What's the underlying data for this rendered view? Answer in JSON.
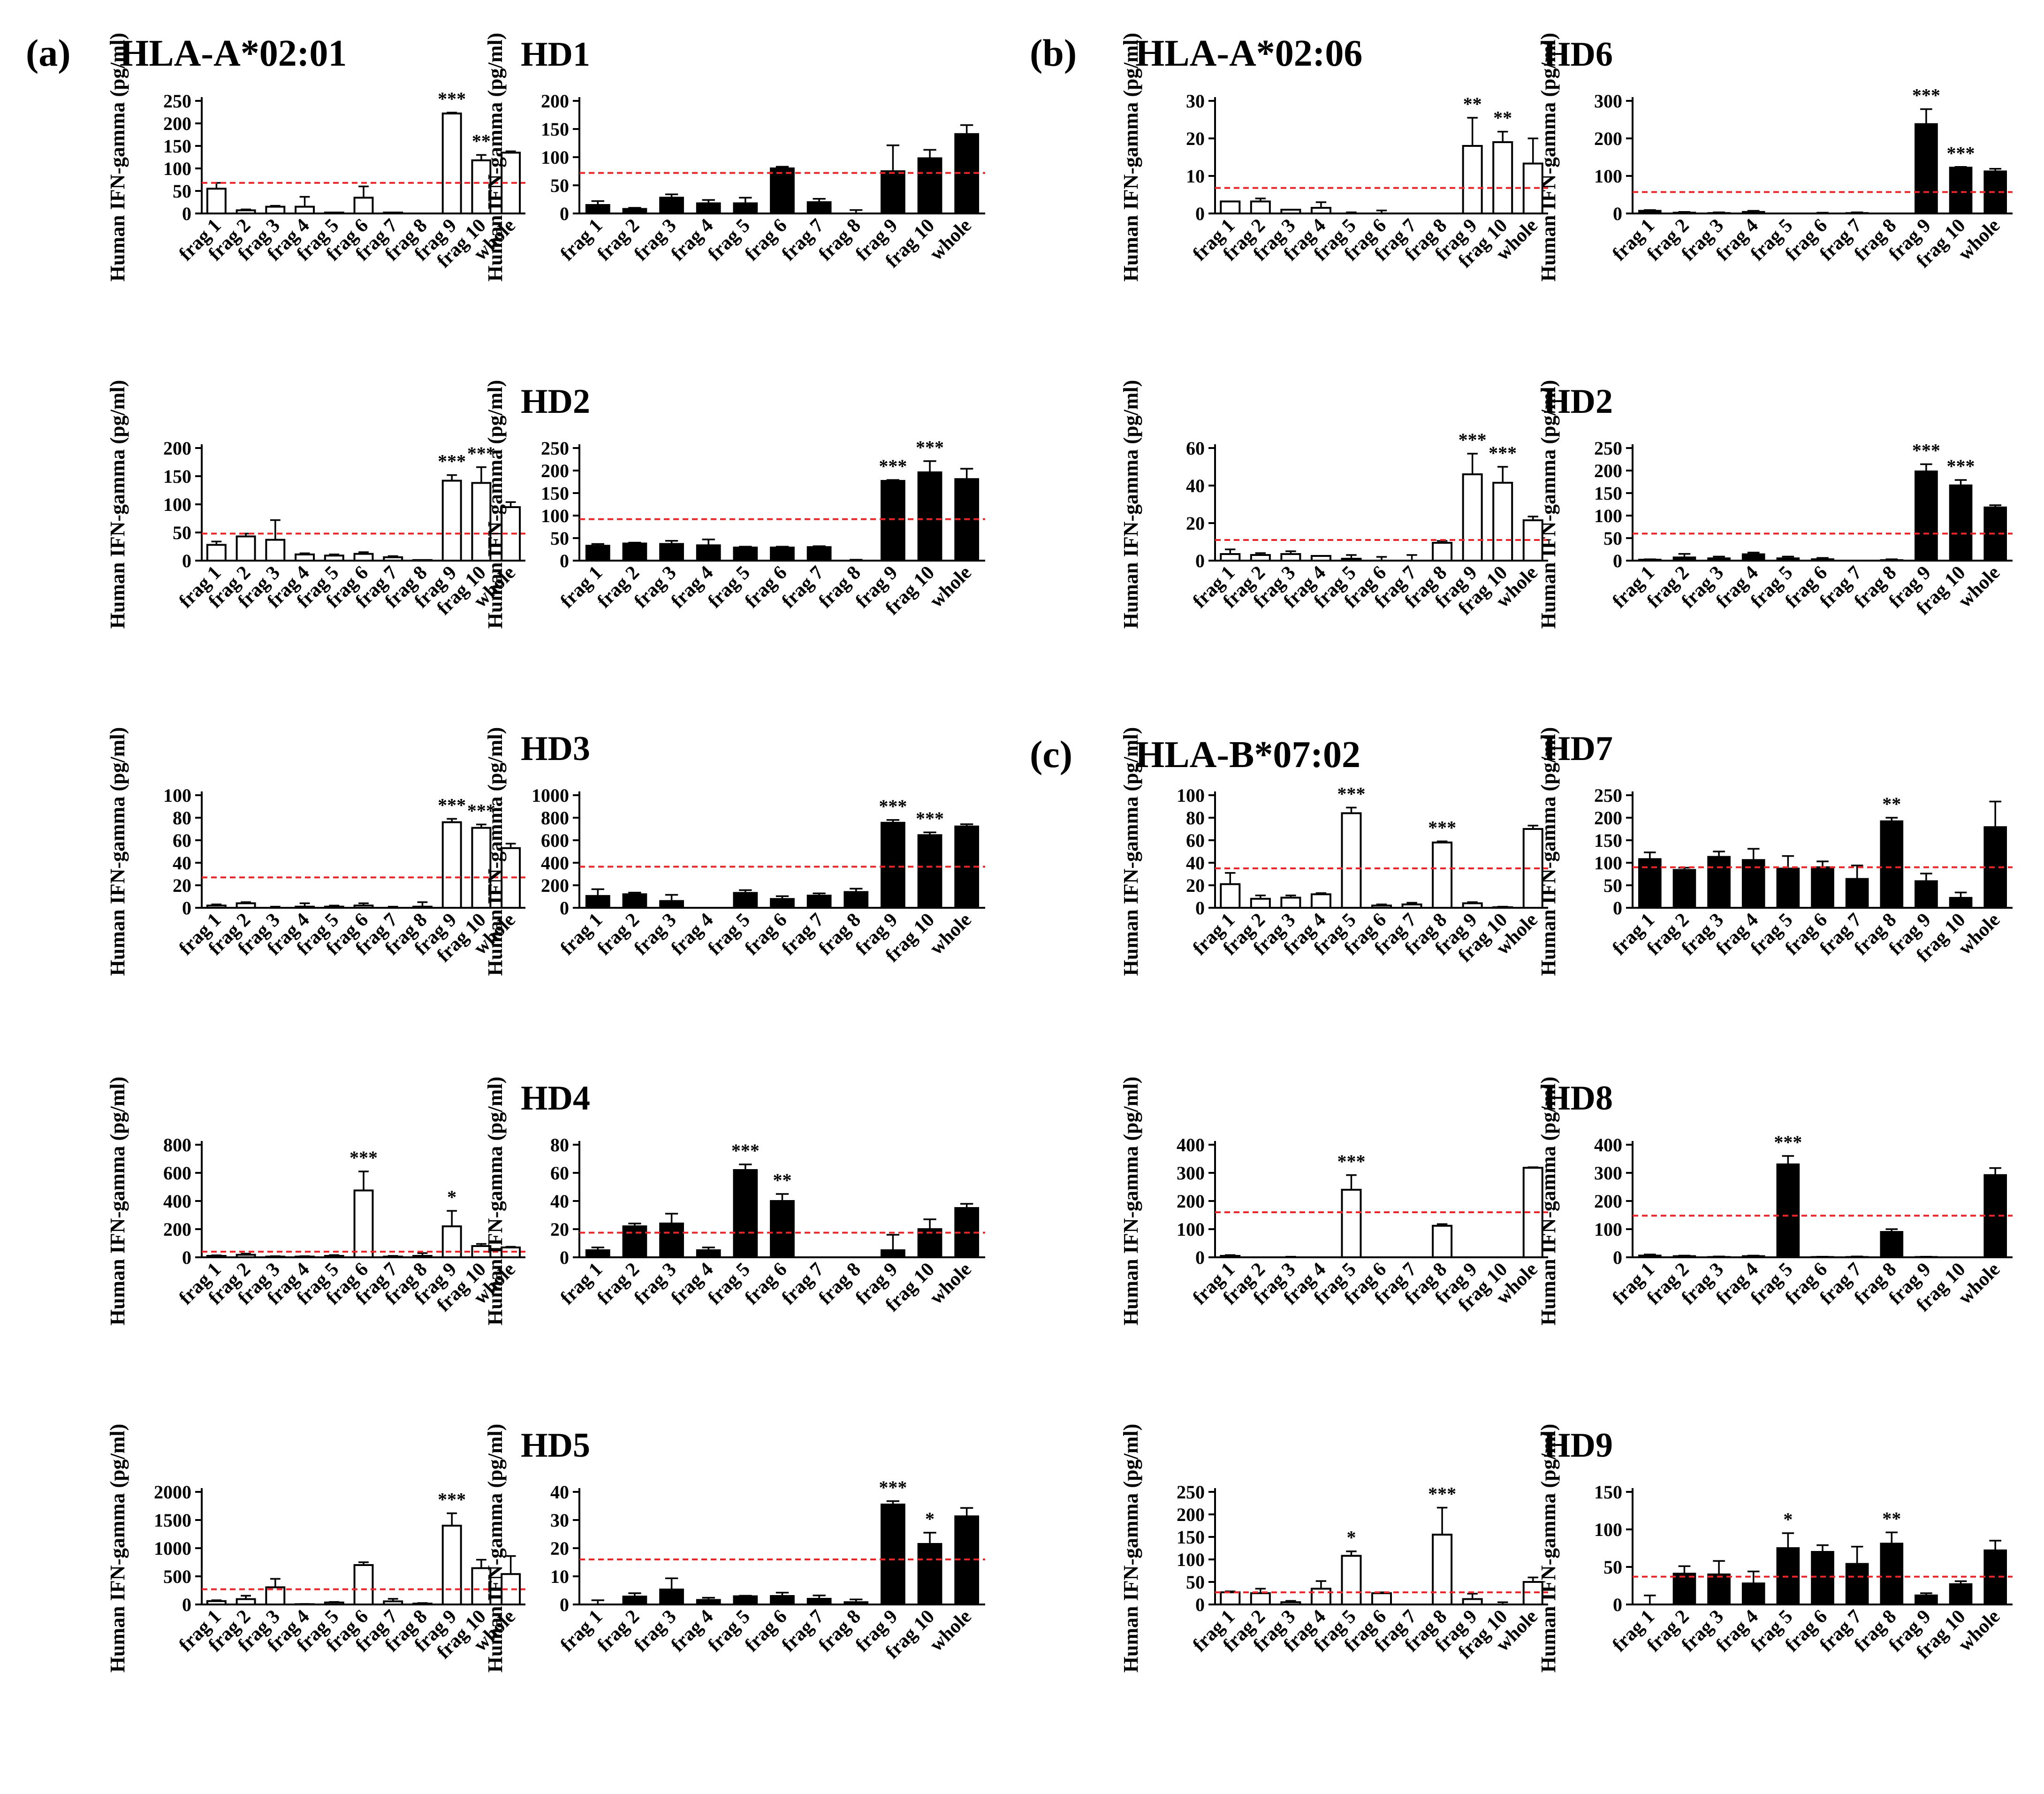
{
  "figure": {
    "panel_labels": [
      "(a)",
      "(b)",
      "(c)"
    ],
    "groups": [
      "HLA-A*02:01",
      "HLA-A*02:06",
      "HLA-B*07:02"
    ],
    "donors": [
      "HD1",
      "HD2",
      "HD3",
      "HD4",
      "HD5",
      "HD6",
      "HD2",
      "HD7",
      "HD8",
      "HD9"
    ],
    "categories": [
      "frag 1",
      "frag 2",
      "frag 3",
      "frag 4",
      "frag 5",
      "frag 6",
      "frag 7",
      "frag 8",
      "frag 9",
      "frag 10",
      "whole"
    ],
    "y_axis_label": "Human IFN-gamma (pg/ml)"
  },
  "colors": {
    "threshold": "#e8262a",
    "bar_filled": "#000000",
    "bar_open": "#ffffff",
    "axis": "#000000"
  },
  "chart_data": [
    {
      "type": "bar",
      "panel": "a",
      "donor": "HD1",
      "fill": "open",
      "ylim": [
        0,
        250
      ],
      "yticks": [
        0,
        50,
        100,
        150,
        200,
        250
      ],
      "threshold": 68,
      "values": [
        55,
        7,
        15,
        15,
        2,
        35,
        2,
        0,
        222,
        118,
        135
      ],
      "errors": [
        13,
        2,
        2,
        22,
        0,
        25,
        0,
        0,
        2,
        12,
        3
      ],
      "significance": [
        "",
        "",
        "",
        "",
        "",
        "",
        "",
        "",
        "***",
        "**",
        ""
      ]
    },
    {
      "type": "bar",
      "panel": "a",
      "donor": "HD1",
      "fill": "filled",
      "ylim": [
        0,
        200
      ],
      "yticks": [
        0,
        50,
        100,
        150,
        200
      ],
      "threshold": 72,
      "values": [
        15,
        8,
        28,
        18,
        18,
        80,
        20,
        0,
        75,
        98,
        141
      ],
      "errors": [
        7,
        2,
        6,
        6,
        10,
        3,
        6,
        6,
        46,
        15,
        16
      ],
      "significance": [
        "",
        "",
        "",
        "",
        "",
        "",
        "",
        "",
        "",
        "",
        ""
      ]
    },
    {
      "type": "bar",
      "panel": "a",
      "donor": "HD2",
      "fill": "open",
      "ylim": [
        0,
        200
      ],
      "yticks": [
        0,
        50,
        100,
        150,
        200
      ],
      "threshold": 48,
      "values": [
        28,
        43,
        37,
        11,
        9,
        12,
        6,
        1,
        142,
        138,
        95
      ],
      "errors": [
        6,
        5,
        35,
        2,
        2,
        3,
        2,
        0,
        10,
        28,
        9
      ],
      "significance": [
        "",
        "",
        "",
        "",
        "",
        "",
        "",
        "",
        "***",
        "***",
        ""
      ]
    },
    {
      "type": "bar",
      "panel": "a",
      "donor": "HD2",
      "fill": "filled",
      "ylim": [
        0,
        250
      ],
      "yticks": [
        0,
        50,
        100,
        150,
        200,
        250
      ],
      "threshold": 92,
      "values": [
        33,
        38,
        37,
        34,
        29,
        29,
        30,
        0,
        177,
        196,
        181
      ],
      "errors": [
        4,
        2,
        7,
        13,
        2,
        2,
        2,
        2,
        2,
        25,
        23
      ],
      "significance": [
        "",
        "",
        "",
        "",
        "",
        "",
        "",
        "",
        "***",
        "***",
        ""
      ]
    },
    {
      "type": "bar",
      "panel": "a",
      "donor": "HD3",
      "fill": "open",
      "ylim": [
        0,
        100
      ],
      "yticks": [
        0,
        20,
        40,
        60,
        80,
        100
      ],
      "threshold": 27,
      "values": [
        2,
        4,
        0,
        1,
        1,
        2,
        0,
        1,
        76,
        71,
        53
      ],
      "errors": [
        1,
        1,
        1,
        3,
        1,
        2,
        1,
        4,
        3,
        3,
        4
      ],
      "significance": [
        "",
        "",
        "",
        "",
        "",
        "",
        "",
        "",
        "***",
        "***",
        ""
      ]
    },
    {
      "type": "bar",
      "panel": "a",
      "donor": "HD3",
      "fill": "filled",
      "ylim": [
        0,
        1000
      ],
      "yticks": [
        0,
        200,
        400,
        600,
        800,
        1000
      ],
      "threshold": 365,
      "values": [
        105,
        120,
        60,
        0,
        132,
        78,
        108,
        140,
        755,
        645,
        722
      ],
      "errors": [
        60,
        15,
        55,
        0,
        25,
        25,
        20,
        30,
        25,
        25,
        20
      ],
      "significance": [
        "",
        "",
        "",
        "",
        "",
        "",
        "",
        "",
        "***",
        "***",
        ""
      ]
    },
    {
      "type": "bar",
      "panel": "a",
      "donor": "HD4",
      "fill": "open",
      "ylim": [
        0,
        800
      ],
      "yticks": [
        0,
        200,
        400,
        600,
        800
      ],
      "threshold": 40,
      "values": [
        10,
        18,
        5,
        5,
        10,
        475,
        5,
        10,
        220,
        80,
        70
      ],
      "errors": [
        4,
        8,
        3,
        3,
        6,
        135,
        5,
        20,
        110,
        15,
        5
      ],
      "significance": [
        "",
        "",
        "",
        "",
        "",
        "***",
        "",
        "",
        "*",
        "",
        ""
      ]
    },
    {
      "type": "bar",
      "panel": "a",
      "donor": "HD4",
      "fill": "filled",
      "ylim": [
        0,
        80
      ],
      "yticks": [
        0,
        20,
        40,
        60,
        80
      ],
      "threshold": 17.5,
      "values": [
        5,
        22,
        24,
        5,
        62,
        40,
        0,
        0,
        5,
        20,
        35
      ],
      "errors": [
        2,
        2,
        7,
        2,
        4,
        5,
        0,
        0,
        11,
        7,
        3
      ],
      "significance": [
        "",
        "",
        "",
        "",
        "***",
        "**",
        "",
        "",
        "",
        "",
        ""
      ]
    },
    {
      "type": "bar",
      "panel": "a",
      "donor": "HD5",
      "fill": "open",
      "ylim": [
        0,
        2000
      ],
      "yticks": [
        0,
        500,
        1000,
        1500,
        2000
      ],
      "threshold": 270,
      "values": [
        60,
        95,
        305,
        5,
        35,
        700,
        55,
        15,
        1400,
        645,
        540
      ],
      "errors": [
        15,
        60,
        150,
        3,
        10,
        50,
        45,
        10,
        220,
        150,
        320
      ],
      "significance": [
        "",
        "",
        "",
        "",
        "",
        "",
        "",
        "",
        "***",
        "",
        ""
      ]
    },
    {
      "type": "bar",
      "panel": "a",
      "donor": "HD5",
      "fill": "filled",
      "ylim": [
        0,
        40
      ],
      "yticks": [
        0,
        10,
        20,
        30,
        40
      ],
      "threshold": 16,
      "values": [
        0,
        2.8,
        5.3,
        1.6,
        2.9,
        3.0,
        2.0,
        0.8,
        35.5,
        21.5,
        31.3
      ],
      "errors": [
        1.5,
        1.2,
        4,
        0.8,
        0.2,
        1.2,
        1.2,
        1,
        1.2,
        4,
        3
      ],
      "significance": [
        "",
        "",
        "",
        "",
        "",
        "",
        "",
        "",
        "***",
        "*",
        ""
      ]
    },
    {
      "type": "bar",
      "panel": "b",
      "donor": "HD6",
      "fill": "open",
      "ylim": [
        0,
        30
      ],
      "yticks": [
        0,
        10,
        20,
        30
      ],
      "threshold": 6.8,
      "values": [
        3.2,
        3.2,
        1.0,
        1.5,
        0,
        0,
        0,
        0,
        18,
        19,
        13.3
      ],
      "errors": [
        0,
        0.8,
        0,
        1.5,
        0.3,
        0.8,
        0,
        0,
        7.5,
        2.8,
        6.7
      ],
      "significance": [
        "",
        "",
        "",
        "",
        "",
        "",
        "",
        "",
        "**",
        "**",
        ""
      ]
    },
    {
      "type": "bar",
      "panel": "b",
      "donor": "HD6",
      "fill": "filled",
      "ylim": [
        0,
        300
      ],
      "yticks": [
        0,
        100,
        200,
        300
      ],
      "threshold": 57,
      "values": [
        7,
        2,
        1,
        4,
        0,
        0,
        1,
        0,
        238,
        122,
        112
      ],
      "errors": [
        2,
        2,
        2,
        3,
        0,
        2,
        2,
        0,
        40,
        2,
        7
      ],
      "significance": [
        "",
        "",
        "",
        "",
        "",
        "",
        "",
        "",
        "***",
        "***",
        ""
      ]
    },
    {
      "type": "bar",
      "panel": "b",
      "donor": "HD2",
      "fill": "open",
      "ylim": [
        0,
        60
      ],
      "yticks": [
        0,
        20,
        40,
        60
      ],
      "threshold": 11,
      "values": [
        3.5,
        3,
        3.5,
        2.5,
        1,
        0,
        0,
        9.5,
        46,
        41.5,
        21.5
      ],
      "errors": [
        2.5,
        1,
        1.5,
        0,
        2,
        2,
        3,
        1,
        11,
        8.5,
        2
      ],
      "significance": [
        "",
        "",
        "",
        "",
        "",
        "",
        "",
        "",
        "***",
        "***",
        ""
      ]
    },
    {
      "type": "bar",
      "panel": "b",
      "donor": "HD2",
      "fill": "filled",
      "ylim": [
        0,
        250
      ],
      "yticks": [
        0,
        50,
        100,
        150,
        200,
        250
      ],
      "threshold": 60,
      "values": [
        2,
        7,
        5,
        14,
        5,
        3,
        0,
        1,
        198,
        167,
        118
      ],
      "errors": [
        1,
        8,
        4,
        4,
        4,
        3,
        0,
        2,
        16,
        12,
        5
      ],
      "significance": [
        "",
        "",
        "",
        "",
        "",
        "",
        "",
        "",
        "***",
        "***",
        ""
      ]
    },
    {
      "type": "bar",
      "panel": "c",
      "donor": "HD7",
      "fill": "open",
      "ylim": [
        0,
        100
      ],
      "yticks": [
        0,
        20,
        40,
        60,
        80,
        100
      ],
      "threshold": 35,
      "values": [
        21,
        8,
        9,
        12,
        84,
        2,
        3,
        58,
        4,
        0.5,
        70
      ],
      "errors": [
        10,
        3,
        2,
        1,
        5,
        1,
        1.5,
        1,
        1,
        0.5,
        3
      ],
      "significance": [
        "",
        "",
        "",
        "",
        "***",
        "",
        "",
        "***",
        "",
        "",
        ""
      ]
    },
    {
      "type": "bar",
      "panel": "c",
      "donor": "HD7",
      "fill": "filled",
      "ylim": [
        0,
        250
      ],
      "yticks": [
        0,
        50,
        100,
        150,
        200,
        250
      ],
      "threshold": 90,
      "values": [
        108,
        84,
        113,
        106,
        87,
        90,
        64,
        192,
        59,
        22,
        179
      ],
      "errors": [
        15,
        5,
        12,
        25,
        28,
        13,
        30,
        8,
        17,
        12,
        57
      ],
      "significance": [
        "",
        "",
        "",
        "",
        "",
        "",
        "",
        "**",
        "",
        "",
        ""
      ]
    },
    {
      "type": "bar",
      "panel": "c",
      "donor": "HD8",
      "fill": "open",
      "ylim": [
        0,
        400
      ],
      "yticks": [
        0,
        100,
        200,
        300,
        400
      ],
      "threshold": 160,
      "values": [
        5,
        0,
        0,
        0,
        240,
        0,
        0,
        112,
        0,
        0,
        318
      ],
      "errors": [
        3,
        0,
        2,
        0,
        52,
        0,
        0,
        6,
        0,
        0,
        2
      ],
      "significance": [
        "",
        "",
        "",
        "",
        "***",
        "",
        "",
        "",
        "",
        "",
        ""
      ]
    },
    {
      "type": "bar",
      "panel": "c",
      "donor": "HD8",
      "fill": "filled",
      "ylim": [
        0,
        400
      ],
      "yticks": [
        0,
        100,
        200,
        300,
        400
      ],
      "threshold": 148,
      "values": [
        6,
        4,
        1,
        4,
        330,
        1,
        1,
        90,
        1,
        0,
        292
      ],
      "errors": [
        4,
        2,
        2,
        2,
        30,
        1,
        2,
        10,
        1,
        0,
        25
      ],
      "significance": [
        "",
        "",
        "",
        "",
        "***",
        "",
        "",
        "",
        "",
        "",
        ""
      ]
    },
    {
      "type": "bar",
      "panel": "c",
      "donor": "HD9",
      "fill": "open",
      "ylim": [
        0,
        250
      ],
      "yticks": [
        0,
        50,
        100,
        150,
        200,
        250
      ],
      "threshold": 27,
      "values": [
        27,
        25,
        5,
        35,
        108,
        25,
        0,
        155,
        12,
        0,
        50
      ],
      "errors": [
        2,
        10,
        3,
        17,
        10,
        2,
        0,
        60,
        12,
        5,
        10
      ],
      "significance": [
        "",
        "",
        "",
        "",
        "*",
        "",
        "",
        "***",
        "",
        "",
        ""
      ]
    },
    {
      "type": "bar",
      "panel": "c",
      "donor": "HD9",
      "fill": "filled",
      "ylim": [
        0,
        150
      ],
      "yticks": [
        0,
        50,
        100,
        150
      ],
      "threshold": 37,
      "values": [
        0,
        41,
        40,
        28,
        75,
        70,
        54,
        81,
        12,
        27,
        72
      ],
      "errors": [
        12,
        10,
        18,
        16,
        20,
        9,
        23,
        15,
        3,
        4,
        13
      ],
      "significance": [
        "",
        "",
        "",
        "",
        "*",
        "",
        "",
        "**",
        "",
        "",
        ""
      ]
    }
  ]
}
